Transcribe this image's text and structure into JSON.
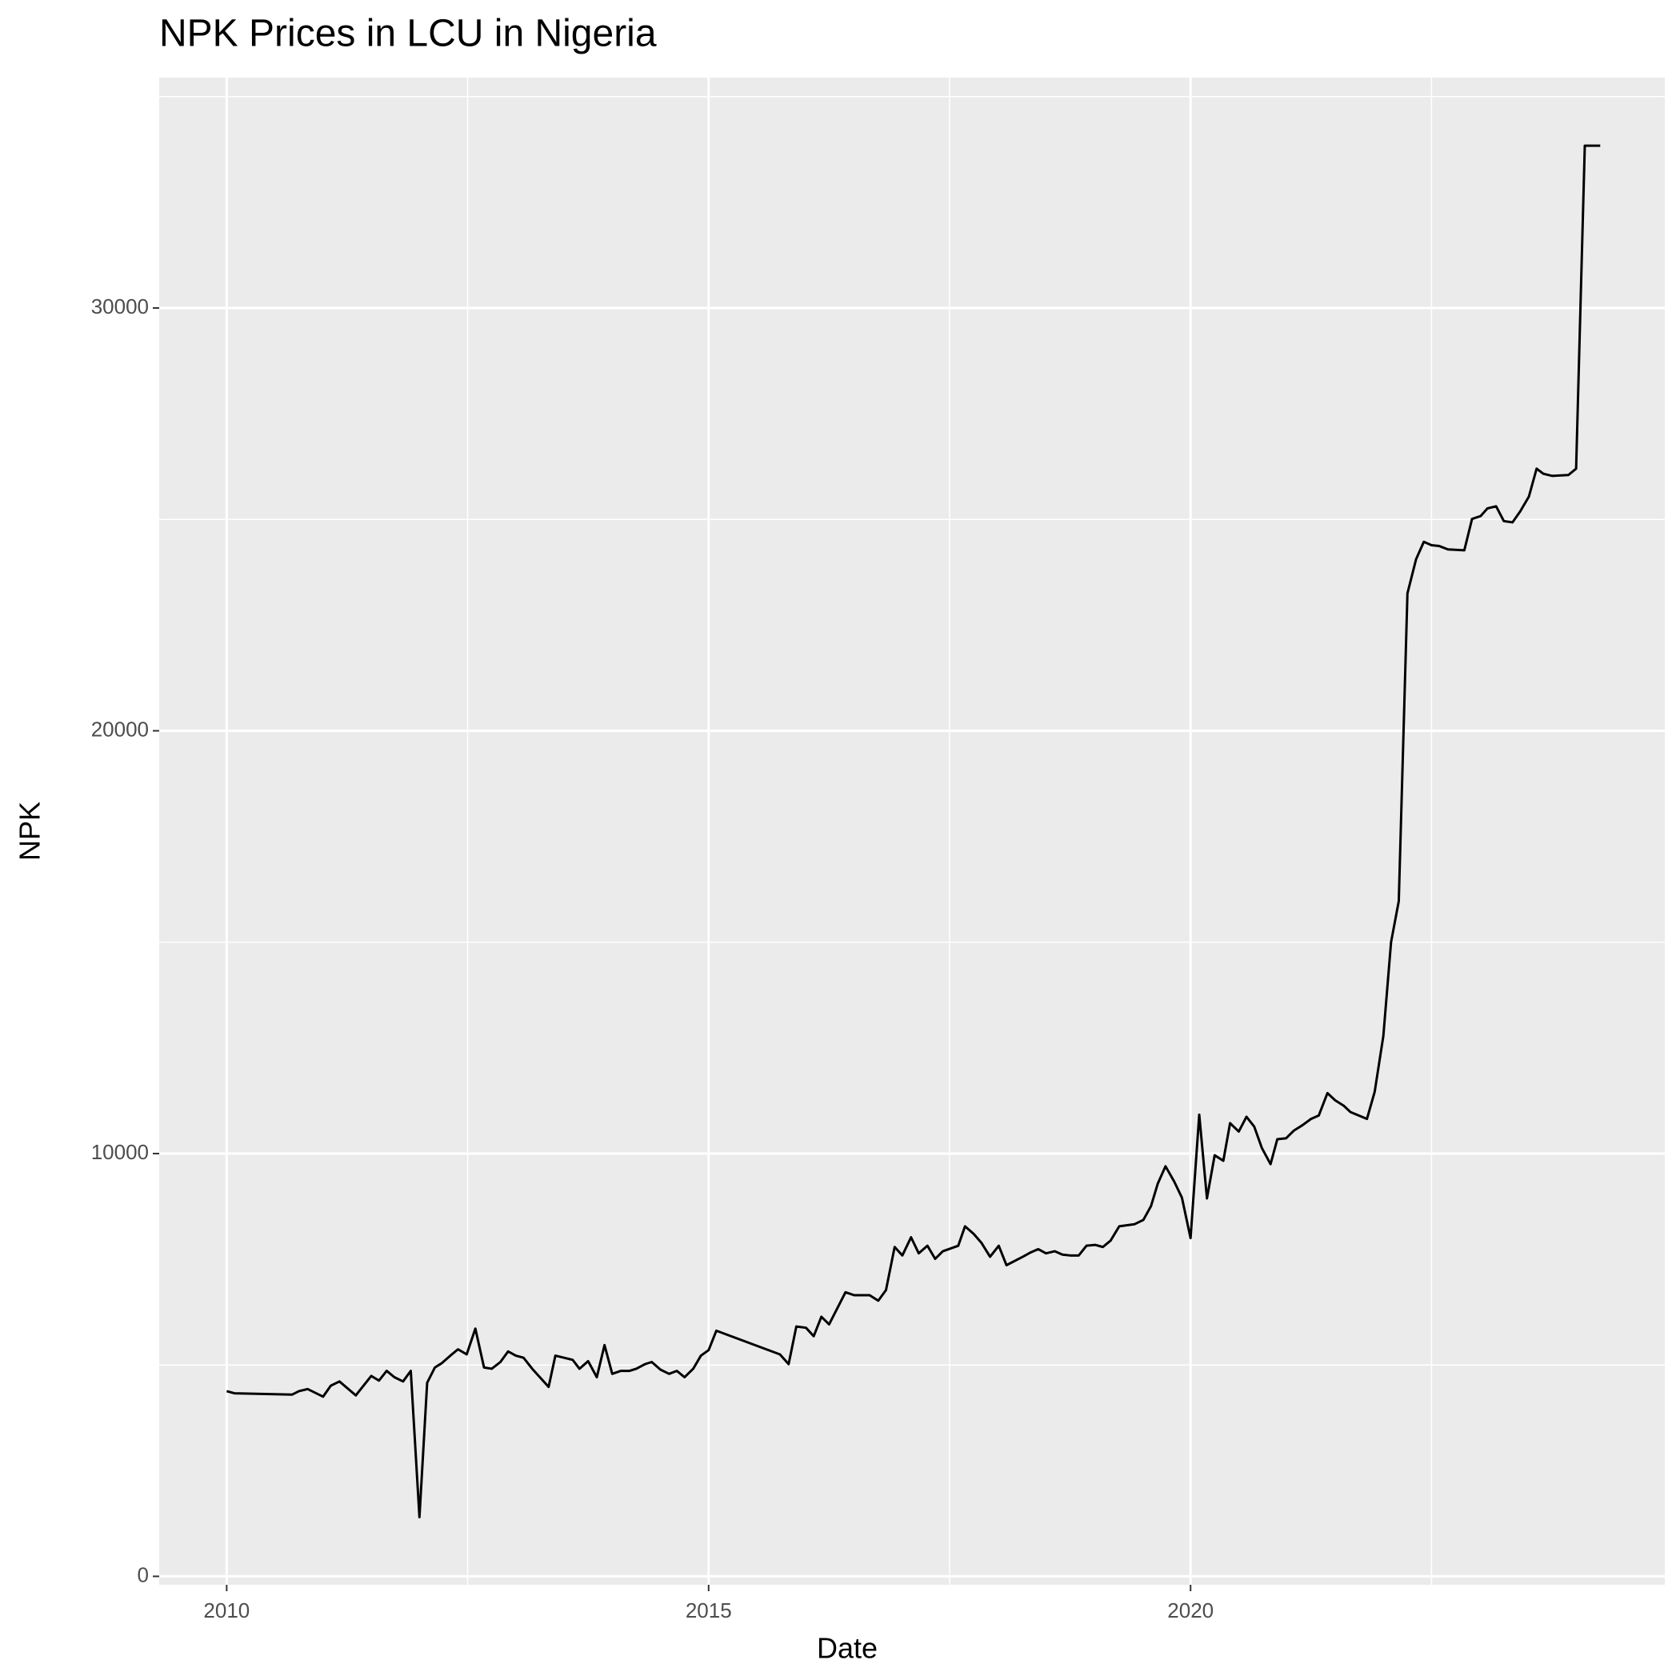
{
  "chart_data": {
    "type": "line",
    "title": "NPK Prices in LCU in Nigeria",
    "x_label": "Date",
    "y_label": "NPK",
    "x": [
      2010.0,
      2010.08,
      2010.68,
      2010.75,
      2010.84,
      2011.0,
      2011.08,
      2011.17,
      2011.34,
      2011.5,
      2011.58,
      2011.66,
      2011.74,
      2011.83,
      2011.91,
      2012.0,
      2012.08,
      2012.16,
      2012.23,
      2012.32,
      2012.4,
      2012.49,
      2012.58,
      2012.67,
      2012.75,
      2012.84,
      2012.92,
      2013.0,
      2013.08,
      2013.17,
      2013.34,
      2013.41,
      2013.59,
      2013.66,
      2013.75,
      2013.84,
      2013.92,
      2014.0,
      2014.09,
      2014.18,
      2014.25,
      2014.34,
      2014.41,
      2014.5,
      2014.59,
      2014.67,
      2014.75,
      2014.84,
      2014.92,
      2015.0,
      2015.08,
      2015.74,
      2015.83,
      2015.91,
      2016.01,
      2016.09,
      2016.17,
      2016.25,
      2016.42,
      2016.51,
      2016.67,
      2016.76,
      2016.84,
      2016.93,
      2017.01,
      2017.1,
      2017.18,
      2017.27,
      2017.35,
      2017.43,
      2017.59,
      2017.66,
      2017.75,
      2017.83,
      2017.92,
      2018.01,
      2018.09,
      2018.26,
      2018.34,
      2018.42,
      2018.5,
      2018.59,
      2018.67,
      2018.75,
      2018.84,
      2018.92,
      2019.01,
      2019.09,
      2019.17,
      2019.26,
      2019.42,
      2019.51,
      2019.59,
      2019.66,
      2019.74,
      2019.83,
      2019.91,
      2020.0,
      2020.09,
      2020.17,
      2020.25,
      2020.34,
      2020.41,
      2020.5,
      2020.58,
      2020.66,
      2020.74,
      2020.83,
      2020.9,
      2020.99,
      2021.07,
      2021.16,
      2021.25,
      2021.33,
      2021.42,
      2021.5,
      2021.59,
      2021.66,
      2021.83,
      2021.91,
      2022.0,
      2022.08,
      2022.16,
      2022.25,
      2022.34,
      2022.42,
      2022.5,
      2022.58,
      2022.67,
      2022.84,
      2022.92,
      2023.01,
      2023.08,
      2023.17,
      2023.25,
      2023.34,
      2023.42,
      2023.51,
      2023.59,
      2023.66,
      2023.75,
      2023.92,
      2024.0,
      2024.09,
      2024.25
    ],
    "values": [
      4380,
      4330,
      4300,
      4380,
      4430,
      4250,
      4510,
      4610,
      4280,
      4740,
      4630,
      4860,
      4710,
      4610,
      4860,
      1400,
      4580,
      4940,
      5040,
      5220,
      5370,
      5250,
      5860,
      4940,
      4910,
      5070,
      5320,
      5220,
      5170,
      4910,
      4480,
      5220,
      5120,
      4910,
      5090,
      4710,
      5470,
      4790,
      4860,
      4860,
      4910,
      5020,
      5070,
      4890,
      4790,
      4860,
      4710,
      4910,
      5220,
      5350,
      5810,
      5250,
      5020,
      5910,
      5880,
      5680,
      6140,
      5960,
      6720,
      6650,
      6650,
      6520,
      6770,
      7790,
      7590,
      8020,
      7640,
      7820,
      7510,
      7690,
      7820,
      8280,
      8100,
      7890,
      7560,
      7820,
      7360,
      7560,
      7660,
      7740,
      7640,
      7690,
      7610,
      7590,
      7590,
      7820,
      7840,
      7790,
      7940,
      8280,
      8330,
      8430,
      8760,
      9290,
      9700,
      9340,
      8960,
      8000,
      10920,
      8940,
      9960,
      9830,
      10720,
      10520,
      10870,
      10640,
      10130,
      9750,
      10340,
      10360,
      10540,
      10670,
      10820,
      10900,
      11430,
      11260,
      11130,
      10980,
      10820,
      11460,
      12780,
      15000,
      15970,
      23250,
      24060,
      24470,
      24390,
      24370,
      24290,
      24270,
      25010,
      25080,
      25260,
      25310,
      24960,
      24930,
      25190,
      25540,
      26200,
      26080,
      26030,
      26050,
      26200,
      33840,
      33840
    ],
    "color": "#000000",
    "xlim": [
      2009.3,
      2024.92
    ],
    "xticks": [
      2010,
      2015,
      2020
    ],
    "ylim": [
      -200,
      35450
    ],
    "yticks": [
      0,
      10000,
      20000,
      30000
    ],
    "grid": true
  }
}
